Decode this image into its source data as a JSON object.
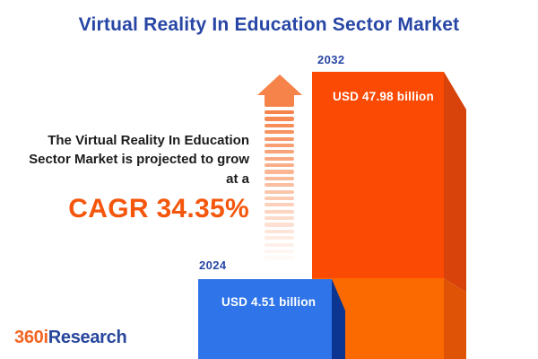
{
  "title": "Virtual Reality In Education Sector Market",
  "description": {
    "text": "The Virtual Reality In Education Sector Market is projected to grow at a",
    "cagr": "CAGR 34.35%"
  },
  "chart_data": {
    "type": "bar",
    "title": "Virtual Reality In Education Sector Market",
    "categories": [
      "2024",
      "2032"
    ],
    "values": [
      4.51,
      47.98
    ],
    "unit": "USD billion",
    "value_labels": [
      "USD 4.51 billion",
      "USD 47.98 billion"
    ],
    "cagr_percent": 34.35,
    "annotations": [
      "The Virtual Reality In Education Sector Market is projected to grow at a CAGR 34.35%"
    ],
    "legend": "none",
    "grid": false,
    "bar_style": "3d-extruded"
  },
  "logo": {
    "part1": "360i",
    "part2": "Research"
  },
  "colors": {
    "title_blue": "#2746a5",
    "accent_orange": "#f4560c",
    "text_dark": "#1c1c1c",
    "arrow_orange": "#f6834a",
    "year_label_blue": "#2746a5",
    "bar_2024_front": "#2f74e8",
    "bar_2024_side": "#0b3590",
    "bar_2032_front_upper": "#fb4a03",
    "bar_2032_side_upper": "#d8430b",
    "bar_2032_front_lower": "#fb6a00",
    "bar_2032_side_lower": "#de5305",
    "value_text": "#ffffff",
    "logo_orange": "#f26522",
    "logo_blue": "#27479e"
  }
}
